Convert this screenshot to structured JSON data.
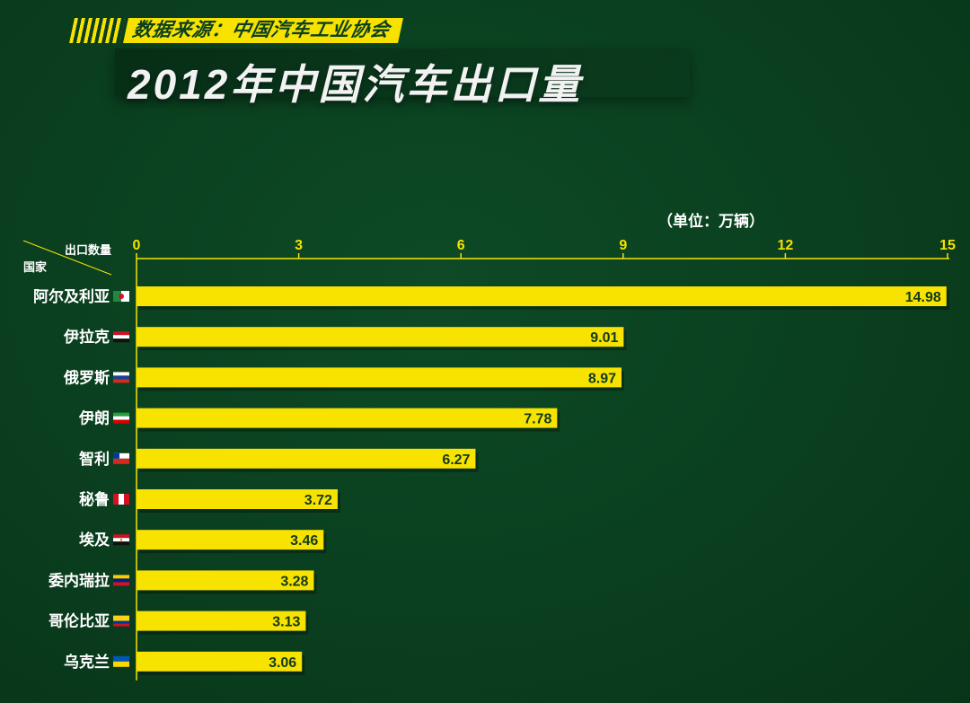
{
  "header": {
    "source": "数据来源：中国汽车工业协会",
    "title": "2012年中国汽车出口量"
  },
  "corner": {
    "top_label": "出口数量",
    "bottom_label": "国家"
  },
  "colors": {
    "bar": "#f7e200",
    "axis": "#f7e200",
    "background": "#0a3f1f",
    "value_text": "#103a1c"
  },
  "chart_data": {
    "type": "bar",
    "orientation": "horizontal",
    "title": "2012年中国汽车出口量",
    "unit": "（单位：万辆）",
    "xlim": [
      0,
      15
    ],
    "ticks": [
      0,
      3,
      6,
      9,
      12,
      15
    ],
    "categories": [
      "阿尔及利亚",
      "伊拉克",
      "俄罗斯",
      "伊朗",
      "智利",
      "秘鲁",
      "埃及",
      "委内瑞拉",
      "哥伦比亚",
      "乌克兰"
    ],
    "values": [
      14.98,
      9.01,
      8.97,
      7.78,
      6.27,
      3.72,
      3.46,
      3.28,
      3.13,
      3.06
    ],
    "value_labels": [
      "14.98",
      "9.01",
      "8.97",
      "7.78",
      "6.27",
      "3.72",
      "3.46",
      "3.28",
      "3.13",
      "3.06"
    ],
    "flags": [
      "algeria-flag-icon",
      "iraq-flag-icon",
      "russia-flag-icon",
      "iran-flag-icon",
      "chile-flag-icon",
      "peru-flag-icon",
      "egypt-flag-icon",
      "venezuela-flag-icon",
      "colombia-flag-icon",
      "ukraine-flag-icon"
    ],
    "grid": false,
    "legend": "none"
  }
}
